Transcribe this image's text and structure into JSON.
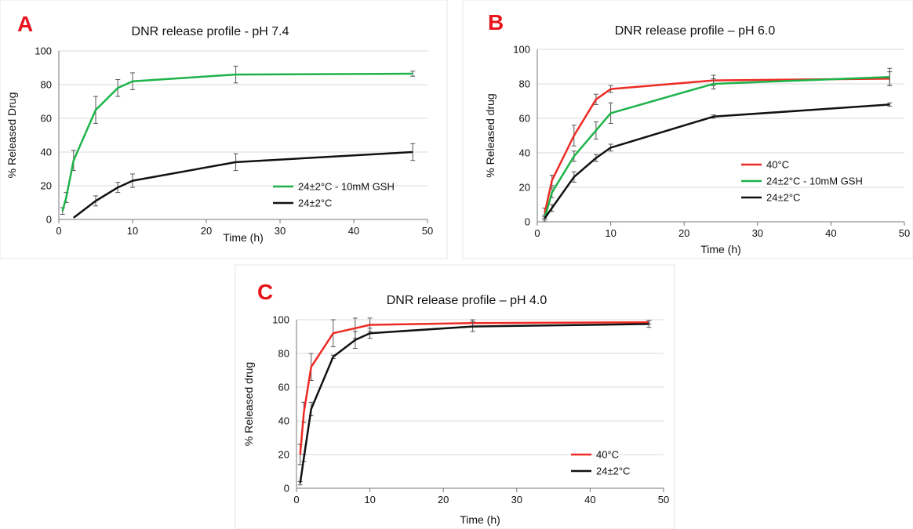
{
  "colors": {
    "panel_letter": "#e8141c",
    "red": "#ee2a24",
    "green": "#1db34a",
    "black": "#111111",
    "error_bar": "#555555",
    "axis": "#777777",
    "grid": "#d9d9d9"
  },
  "chart_data": [
    {
      "panel": "A",
      "type": "line",
      "title": "DNR release profile - pH 7.4",
      "xlabel": "Time  (h)",
      "ylabel": "% Released Drug",
      "xlim": [
        0,
        50
      ],
      "ylim": [
        0,
        100
      ],
      "x_ticks": [
        0,
        10,
        20,
        30,
        40,
        50
      ],
      "y_ticks": [
        0,
        20,
        40,
        60,
        80,
        100
      ],
      "grid": "horizontal",
      "legend_position": "bottom-right",
      "series": [
        {
          "name": "24±2°C - 10mM GSH",
          "color": "green",
          "x": [
            0.5,
            1,
            2,
            5,
            8,
            10,
            24,
            48
          ],
          "y": [
            5,
            13,
            35,
            65,
            78,
            82,
            86,
            86.5
          ],
          "err": [
            2,
            3,
            6,
            8,
            5,
            5,
            5,
            1.5
          ]
        },
        {
          "name": "24±2°C",
          "color": "black",
          "x": [
            2,
            5,
            8,
            10,
            24,
            48
          ],
          "y": [
            1,
            11,
            19,
            23,
            34,
            40
          ],
          "err": [
            0,
            3,
            3,
            4,
            5,
            5
          ]
        }
      ]
    },
    {
      "panel": "B",
      "type": "line",
      "title": "DNR release profile – pH  6.0",
      "xlabel": "Time  (h)",
      "ylabel": "% Released drug",
      "xlim": [
        0,
        50
      ],
      "ylim": [
        0,
        100
      ],
      "x_ticks": [
        0,
        10,
        20,
        30,
        40,
        50
      ],
      "y_ticks": [
        0,
        20,
        40,
        60,
        80,
        100
      ],
      "grid": "horizontal",
      "legend_position": "bottom-right",
      "series": [
        {
          "name": "40°C",
          "color": "red",
          "x": [
            1,
            2,
            5,
            8,
            10,
            24,
            48
          ],
          "y": [
            5,
            24,
            50,
            71,
            77,
            82,
            83
          ],
          "err": [
            3,
            3,
            6,
            3,
            2,
            3,
            4
          ]
        },
        {
          "name": "24±2°C - 10mM GSH",
          "color": "green",
          "x": [
            1,
            2,
            5,
            8,
            10,
            24,
            48
          ],
          "y": [
            2,
            17,
            38,
            53,
            63,
            80,
            84
          ],
          "err": [
            2,
            3,
            3,
            5,
            6,
            3,
            5
          ]
        },
        {
          "name": "24±2°C",
          "color": "black",
          "x": [
            1,
            2,
            5,
            8,
            10,
            24,
            48
          ],
          "y": [
            2,
            8,
            26,
            37,
            43,
            61,
            68
          ],
          "err": [
            1,
            2,
            3,
            2,
            2,
            1,
            1
          ]
        }
      ]
    },
    {
      "panel": "C",
      "type": "line",
      "title": "DNR release profile – pH 4.0",
      "xlabel": "Time  (h)",
      "ylabel": "% Released drug",
      "xlim": [
        0,
        50
      ],
      "ylim": [
        0,
        100
      ],
      "x_ticks": [
        0,
        10,
        20,
        30,
        40,
        50
      ],
      "y_ticks": [
        0,
        20,
        40,
        60,
        80,
        100
      ],
      "grid": "horizontal",
      "legend_position": "bottom-right",
      "series": [
        {
          "name": "40°C",
          "color": "red",
          "x": [
            0.5,
            1,
            2,
            5,
            8,
            10,
            24,
            48
          ],
          "y": [
            20,
            45,
            72,
            92,
            95,
            97,
            98,
            98.5
          ],
          "err": [
            6,
            6,
            8,
            8,
            6,
            4,
            2,
            1
          ]
        },
        {
          "name": "24±2°C",
          "color": "black",
          "x": [
            0.5,
            1,
            2,
            5,
            8,
            10,
            24,
            48
          ],
          "y": [
            3,
            18,
            47,
            78,
            88,
            92,
            96,
            97.5
          ],
          "err": [
            1,
            2,
            4,
            1,
            5,
            3,
            3,
            2
          ]
        }
      ]
    }
  ]
}
